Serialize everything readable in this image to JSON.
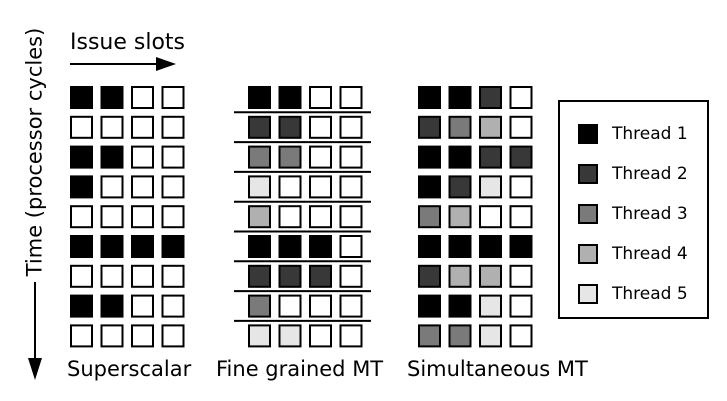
{
  "axes": {
    "x_label": "Issue slots",
    "y_label": "Time (processor cycles)"
  },
  "colors": {
    "0": "#ffffff",
    "1": "#000000",
    "2": "#383838",
    "3": "#7a7a7a",
    "4": "#b0b0b0",
    "5": "#e6e6e6"
  },
  "legend": [
    {
      "thread": 1,
      "label": "Thread 1"
    },
    {
      "thread": 2,
      "label": "Thread 2"
    },
    {
      "thread": 3,
      "label": "Thread 3"
    },
    {
      "thread": 4,
      "label": "Thread 4"
    },
    {
      "thread": 5,
      "label": "Thread 5"
    }
  ],
  "grids": [
    {
      "name": "superscalar",
      "title": "Superscalar",
      "separators": false,
      "rows": [
        [
          1,
          1,
          0,
          0
        ],
        [
          0,
          0,
          0,
          0
        ],
        [
          1,
          1,
          0,
          0
        ],
        [
          1,
          0,
          0,
          0
        ],
        [
          0,
          0,
          0,
          0
        ],
        [
          1,
          1,
          1,
          1
        ],
        [
          0,
          0,
          0,
          0
        ],
        [
          1,
          1,
          0,
          0
        ],
        [
          0,
          0,
          0,
          0
        ]
      ]
    },
    {
      "name": "fine-grained-mt",
      "title": "Fine grained MT",
      "separators": true,
      "rows": [
        [
          1,
          1,
          0,
          0
        ],
        [
          2,
          2,
          0,
          0
        ],
        [
          3,
          3,
          0,
          0
        ],
        [
          5,
          0,
          0,
          0
        ],
        [
          4,
          0,
          0,
          0
        ],
        [
          1,
          1,
          1,
          0
        ],
        [
          2,
          2,
          2,
          0
        ],
        [
          3,
          0,
          0,
          0
        ],
        [
          5,
          5,
          0,
          0
        ]
      ]
    },
    {
      "name": "simultaneous-mt",
      "title": "Simultaneous MT",
      "separators": false,
      "rows": [
        [
          1,
          1,
          2,
          0
        ],
        [
          2,
          3,
          4,
          0
        ],
        [
          1,
          1,
          2,
          2
        ],
        [
          1,
          2,
          5,
          0
        ],
        [
          3,
          4,
          0,
          0
        ],
        [
          1,
          1,
          1,
          1
        ],
        [
          2,
          4,
          4,
          0
        ],
        [
          1,
          1,
          5,
          0
        ],
        [
          3,
          3,
          5,
          0
        ]
      ]
    }
  ]
}
